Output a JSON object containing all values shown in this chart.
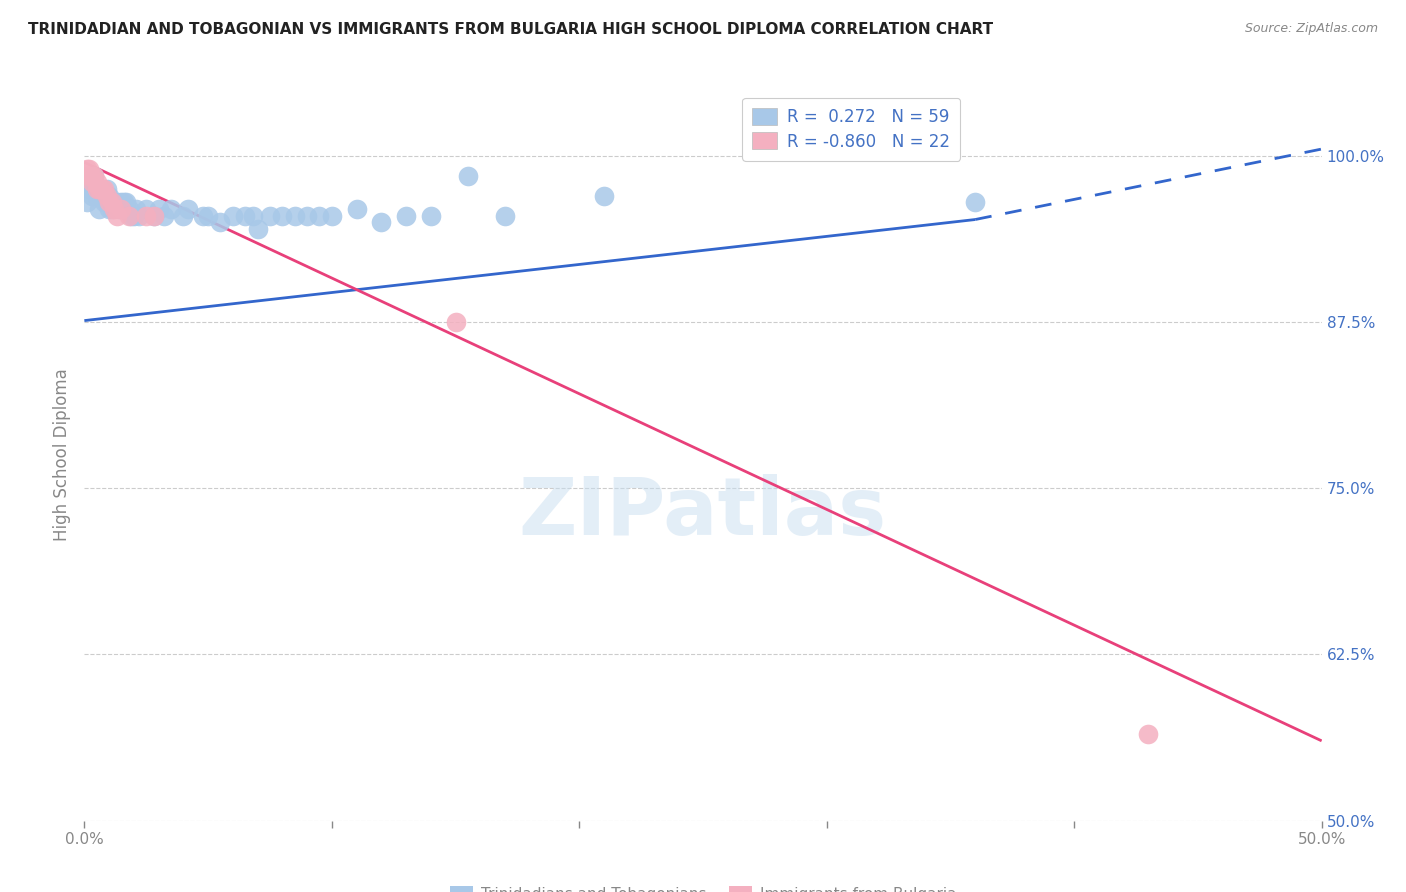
{
  "title": "TRINIDADIAN AND TOBAGONIAN VS IMMIGRANTS FROM BULGARIA HIGH SCHOOL DIPLOMA CORRELATION CHART",
  "source": "Source: ZipAtlas.com",
  "ylabel": "High School Diploma",
  "watermark": "ZIPatlas",
  "legend": {
    "blue_R": "0.272",
    "blue_N": "59",
    "pink_R": "-0.860",
    "pink_N": "22"
  },
  "blue_scatter": [
    [
      0.001,
      0.965
    ],
    [
      0.002,
      0.975
    ],
    [
      0.003,
      0.975
    ],
    [
      0.003,
      0.97
    ],
    [
      0.004,
      0.985
    ],
    [
      0.004,
      0.975
    ],
    [
      0.005,
      0.975
    ],
    [
      0.005,
      0.97
    ],
    [
      0.006,
      0.975
    ],
    [
      0.006,
      0.96
    ],
    [
      0.007,
      0.97
    ],
    [
      0.007,
      0.975
    ],
    [
      0.008,
      0.97
    ],
    [
      0.008,
      0.965
    ],
    [
      0.009,
      0.975
    ],
    [
      0.009,
      0.965
    ],
    [
      0.01,
      0.97
    ],
    [
      0.01,
      0.96
    ],
    [
      0.011,
      0.965
    ],
    [
      0.011,
      0.96
    ],
    [
      0.012,
      0.965
    ],
    [
      0.013,
      0.965
    ],
    [
      0.014,
      0.96
    ],
    [
      0.015,
      0.965
    ],
    [
      0.016,
      0.965
    ],
    [
      0.017,
      0.965
    ],
    [
      0.018,
      0.96
    ],
    [
      0.019,
      0.955
    ],
    [
      0.02,
      0.955
    ],
    [
      0.021,
      0.96
    ],
    [
      0.022,
      0.955
    ],
    [
      0.025,
      0.96
    ],
    [
      0.028,
      0.955
    ],
    [
      0.03,
      0.96
    ],
    [
      0.032,
      0.955
    ],
    [
      0.035,
      0.96
    ],
    [
      0.04,
      0.955
    ],
    [
      0.042,
      0.96
    ],
    [
      0.048,
      0.955
    ],
    [
      0.05,
      0.955
    ],
    [
      0.055,
      0.95
    ],
    [
      0.06,
      0.955
    ],
    [
      0.065,
      0.955
    ],
    [
      0.068,
      0.955
    ],
    [
      0.07,
      0.945
    ],
    [
      0.075,
      0.955
    ],
    [
      0.08,
      0.955
    ],
    [
      0.085,
      0.955
    ],
    [
      0.09,
      0.955
    ],
    [
      0.095,
      0.955
    ],
    [
      0.1,
      0.955
    ],
    [
      0.11,
      0.96
    ],
    [
      0.12,
      0.95
    ],
    [
      0.13,
      0.955
    ],
    [
      0.14,
      0.955
    ],
    [
      0.155,
      0.985
    ],
    [
      0.17,
      0.955
    ],
    [
      0.21,
      0.97
    ],
    [
      0.36,
      0.965
    ]
  ],
  "pink_scatter": [
    [
      0.001,
      0.99
    ],
    [
      0.002,
      0.99
    ],
    [
      0.002,
      0.985
    ],
    [
      0.003,
      0.985
    ],
    [
      0.003,
      0.98
    ],
    [
      0.004,
      0.985
    ],
    [
      0.005,
      0.98
    ],
    [
      0.005,
      0.975
    ],
    [
      0.006,
      0.975
    ],
    [
      0.007,
      0.975
    ],
    [
      0.008,
      0.975
    ],
    [
      0.009,
      0.97
    ],
    [
      0.01,
      0.965
    ],
    [
      0.011,
      0.965
    ],
    [
      0.012,
      0.96
    ],
    [
      0.013,
      0.955
    ],
    [
      0.015,
      0.96
    ],
    [
      0.018,
      0.955
    ],
    [
      0.025,
      0.955
    ],
    [
      0.028,
      0.955
    ],
    [
      0.15,
      0.875
    ],
    [
      0.43,
      0.565
    ]
  ],
  "blue_line_solid": [
    [
      0.0,
      0.876
    ],
    [
      0.36,
      0.952
    ]
  ],
  "blue_line_dashed": [
    [
      0.36,
      0.952
    ],
    [
      0.5,
      1.005
    ]
  ],
  "pink_line": [
    [
      0.0,
      0.995
    ],
    [
      0.5,
      0.56
    ]
  ],
  "xlim": [
    0.0,
    0.5
  ],
  "ylim": [
    0.5,
    1.05
  ],
  "yticks": [
    0.5,
    0.625,
    0.75,
    0.875,
    1.0
  ],
  "ytick_labels": [
    "50.0%",
    "62.5%",
    "75.0%",
    "87.5%",
    "100.0%"
  ],
  "xtick_positions": [
    0.0,
    0.1,
    0.2,
    0.3,
    0.4,
    0.5
  ],
  "xtick_labels": [
    "0.0%",
    "",
    "",
    "",
    "",
    "50.0%"
  ],
  "background_color": "#ffffff",
  "blue_color": "#A8C8E8",
  "pink_color": "#F4B0C0",
  "blue_line_color": "#3366CC",
  "pink_line_color": "#E8407A",
  "title_color": "#222222",
  "axis_label_color": "#888888",
  "right_tick_color": "#4472C4",
  "grid_color": "#CCCCCC",
  "legend_text_color": "#333333"
}
